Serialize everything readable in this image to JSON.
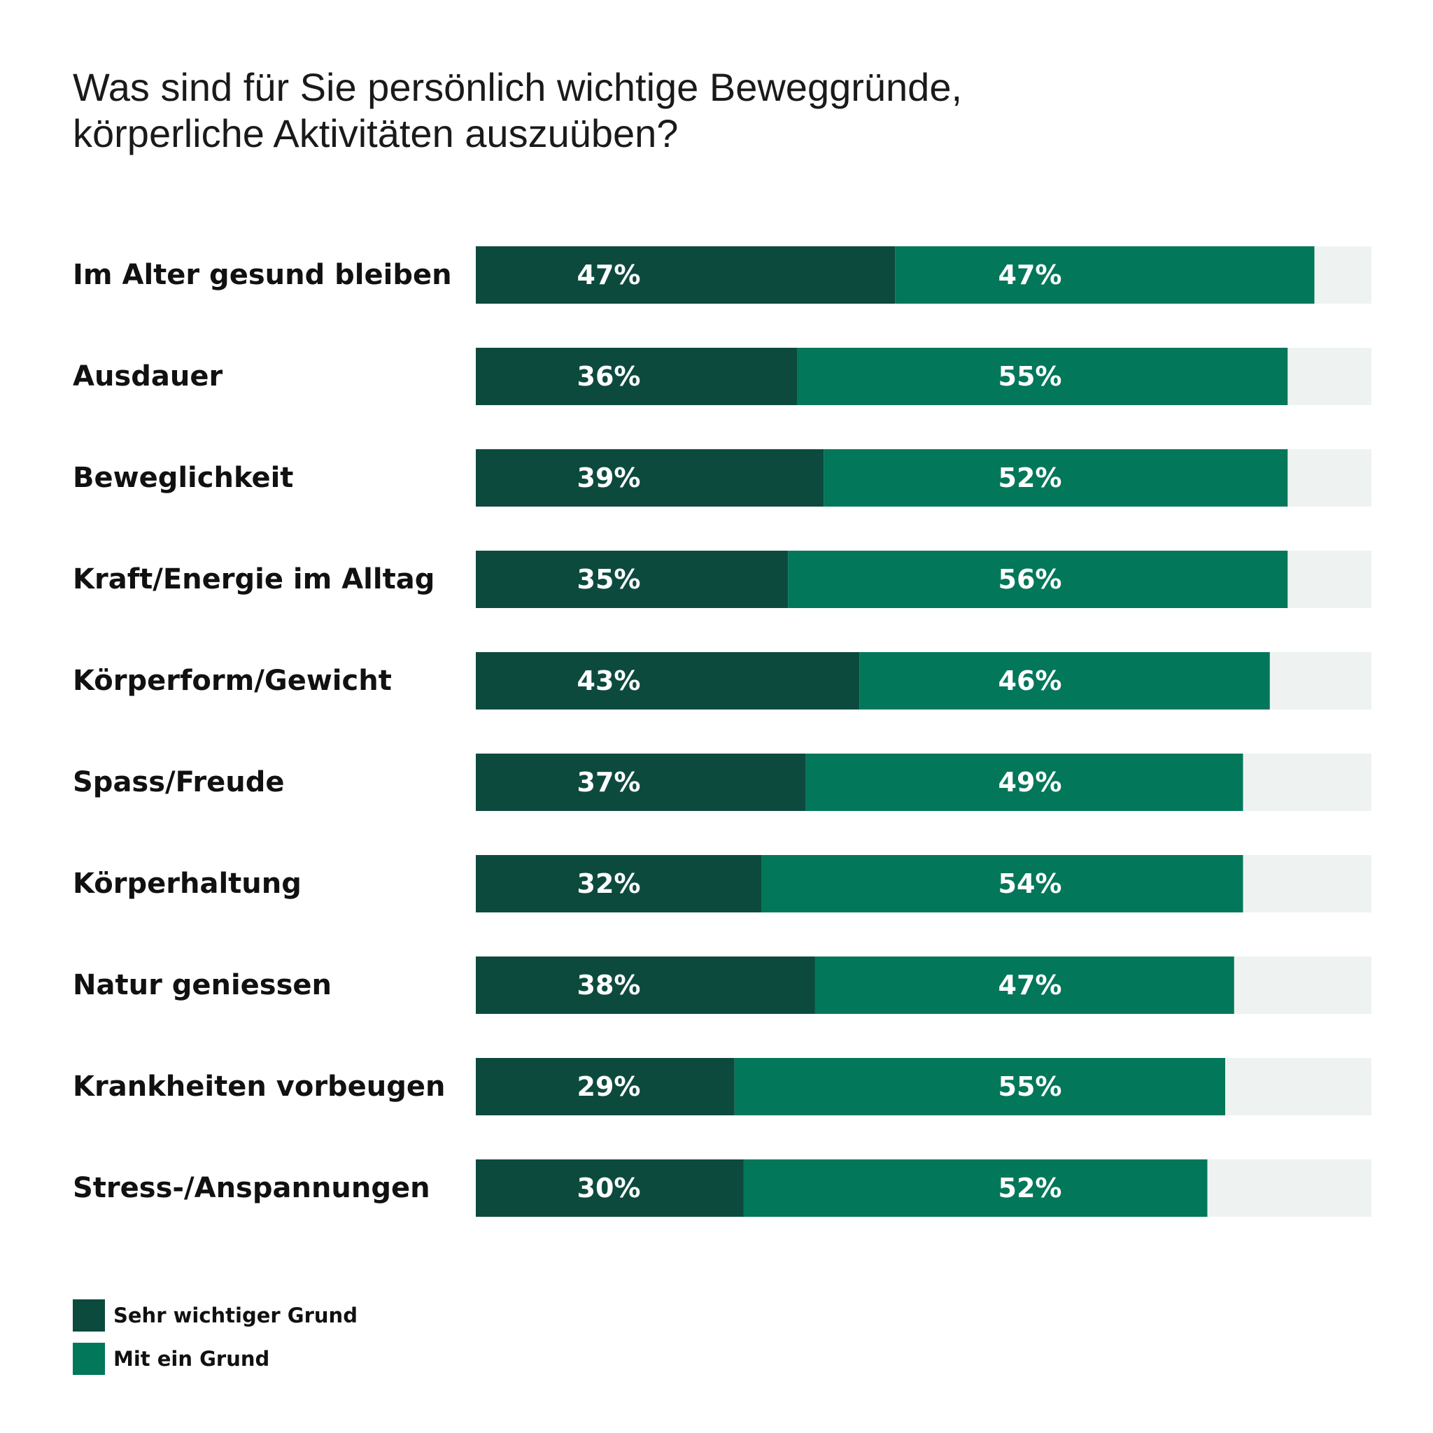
{
  "title_lines": [
    "Was sind für Sie persönlich wichtige Beweggründe,",
    "körperliche Aktivitäten auszuüben?"
  ],
  "colors": {
    "series1": "#0d4a3e",
    "series2": "#02775a",
    "track": "#eef3f1"
  },
  "legend": [
    {
      "label": "Sehr wichtiger Grund",
      "color": "#0d4a3e"
    },
    {
      "label": "Mit ein Grund",
      "color": "#02775a"
    }
  ],
  "chart_data": {
    "type": "bar",
    "orientation": "horizontal",
    "stacked": true,
    "title": "Was sind für Sie persönlich wichtige Beweggründe, körperliche Aktivitäten auszuüben?",
    "xlim": [
      0,
      100
    ],
    "unit": "%",
    "grid": false,
    "legend_position": "bottom-left",
    "categories": [
      "Im Alter gesund bleiben",
      "Ausdauer",
      "Beweglichkeit",
      "Kraft/Energie im Alltag",
      "Körperform/Gewicht",
      "Spass/Freude",
      "Körperhaltung",
      "Natur geniessen",
      "Krankheiten vorbeugen",
      "Stress-/Anspannungen"
    ],
    "series": [
      {
        "name": "Sehr wichtiger Grund",
        "values": [
          47,
          36,
          39,
          35,
          43,
          37,
          32,
          38,
          29,
          30
        ]
      },
      {
        "name": "Mit ein Grund",
        "values": [
          47,
          55,
          52,
          56,
          46,
          49,
          54,
          47,
          55,
          52
        ]
      }
    ]
  }
}
